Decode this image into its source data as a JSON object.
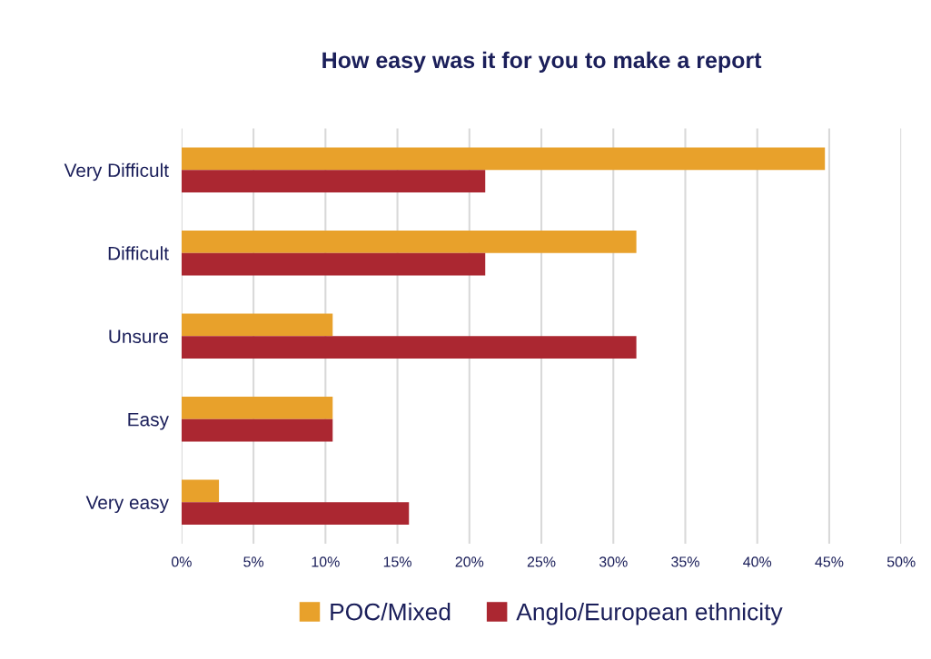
{
  "chart_data": {
    "type": "bar",
    "orientation": "horizontal",
    "title": "How easy was it for you to make a report",
    "categories": [
      "Very Difficult",
      "Difficult",
      "Unsure",
      "Easy",
      "Very easy"
    ],
    "series": [
      {
        "name": "POC/Mixed",
        "color": "#e8a12b",
        "values": [
          44.7,
          31.6,
          10.5,
          10.5,
          2.6
        ]
      },
      {
        "name": "Anglo/European ethnicity",
        "color": "#ab2731",
        "values": [
          21.1,
          21.1,
          31.6,
          10.5,
          15.8
        ]
      }
    ],
    "xlim": [
      0,
      50
    ],
    "xticks": [
      {
        "value": 0,
        "label": "0%"
      },
      {
        "value": 5,
        "label": "5%"
      },
      {
        "value": 10,
        "label": "10%"
      },
      {
        "value": 15,
        "label": "15%"
      },
      {
        "value": 20,
        "label": "20%"
      },
      {
        "value": 25,
        "label": "25%"
      },
      {
        "value": 30,
        "label": "30%"
      },
      {
        "value": 35,
        "label": "35%"
      },
      {
        "value": 40,
        "label": "40%"
      },
      {
        "value": 45,
        "label": "45%"
      },
      {
        "value": 50,
        "label": "50%"
      }
    ],
    "grid": "x",
    "legend": "bottom"
  }
}
